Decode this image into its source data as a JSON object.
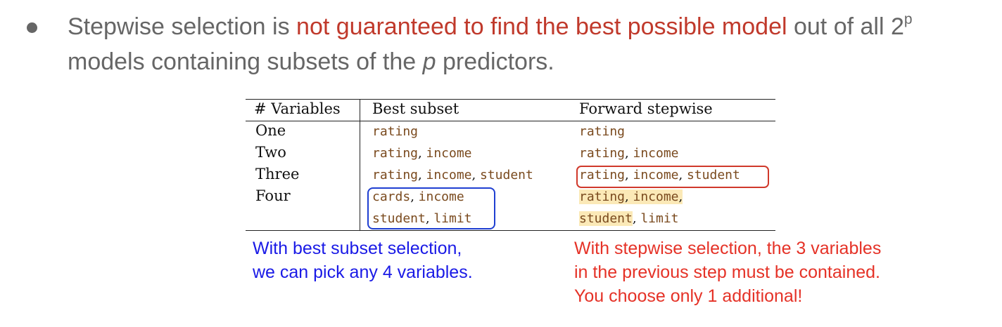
{
  "bullet": {
    "text_before": "Stepwise selection is ",
    "highlight": "not guaranteed to find the best possible model",
    "text_after_1": " out of all 2",
    "superscript": "p",
    "line2_before": "models containing subsets of the ",
    "line2_italic": "p",
    "line2_after": " predictors.",
    "colors": {
      "text": "#666666",
      "highlight": "#c0392b"
    }
  },
  "table": {
    "headers": [
      "# Variables",
      "Best subset",
      "Forward stepwise"
    ],
    "rows": [
      {
        "label": "One",
        "best": [
          "rating"
        ],
        "forward": [
          "rating"
        ]
      },
      {
        "label": "Two",
        "best": [
          "rating",
          "income"
        ],
        "forward": [
          "rating",
          "income"
        ]
      },
      {
        "label": "Three",
        "best": [
          "rating",
          "income",
          "student"
        ],
        "forward": [
          "rating",
          "income",
          "student"
        ]
      },
      {
        "label": "Four",
        "best_line1": [
          "cards",
          "income"
        ],
        "best_line2": [
          "student",
          "limit"
        ],
        "forward_line1": [
          "rating",
          "income"
        ],
        "forward_line2": [
          "student",
          "limit"
        ]
      }
    ]
  },
  "annotations": {
    "blue": {
      "lines": [
        "With best subset selection,",
        "we can pick any 4 variables."
      ],
      "color": "#1a1ae6"
    },
    "red": {
      "lines": [
        "With stepwise selection, the 3 variables",
        "in the previous step must be contained.",
        "You choose only 1 additional!"
      ],
      "color": "#e53227"
    }
  }
}
